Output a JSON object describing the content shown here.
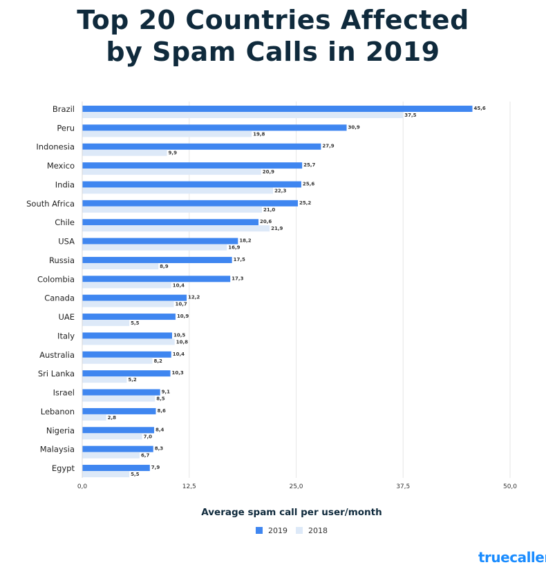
{
  "chart_data": {
    "type": "bar",
    "orientation": "horizontal",
    "title": "Top 20 Countries Affected by Spam Calls in 2019",
    "title_lines": [
      "Top 20 Countries Affected",
      "by Spam Calls in 2019"
    ],
    "xlabel": "Average spam call per user/month",
    "ylabel": "",
    "xlim": [
      0,
      50
    ],
    "xticks": [
      "0,0",
      "12,5",
      "25,0",
      "37,5",
      "50,0"
    ],
    "grid": true,
    "legend_position": "bottom",
    "categories": [
      "Brazil",
      "Peru",
      "Indonesia",
      "Mexico",
      "India",
      "South Africa",
      "Chile",
      "USA",
      "Russia",
      "Colombia",
      "Canada",
      "UAE",
      "Italy",
      "Australia",
      "Sri Lanka",
      "Israel",
      "Lebanon",
      "Nigeria",
      "Malaysia",
      "Egypt"
    ],
    "series": [
      {
        "name": "2019",
        "color": "#3f86f0",
        "values": [
          45.6,
          30.9,
          27.9,
          25.7,
          25.6,
          25.2,
          20.6,
          18.2,
          17.5,
          17.3,
          12.2,
          10.9,
          10.5,
          10.4,
          10.3,
          9.1,
          8.6,
          8.4,
          8.3,
          7.9
        ]
      },
      {
        "name": "2018",
        "color": "#dde9f8",
        "values": [
          37.5,
          19.8,
          9.9,
          20.9,
          22.3,
          21.0,
          21.9,
          16.9,
          8.9,
          10.4,
          10.7,
          5.5,
          10.8,
          8.2,
          5.2,
          8.5,
          2.8,
          7.0,
          6.7,
          5.5
        ]
      }
    ]
  },
  "logo": "truecaller"
}
